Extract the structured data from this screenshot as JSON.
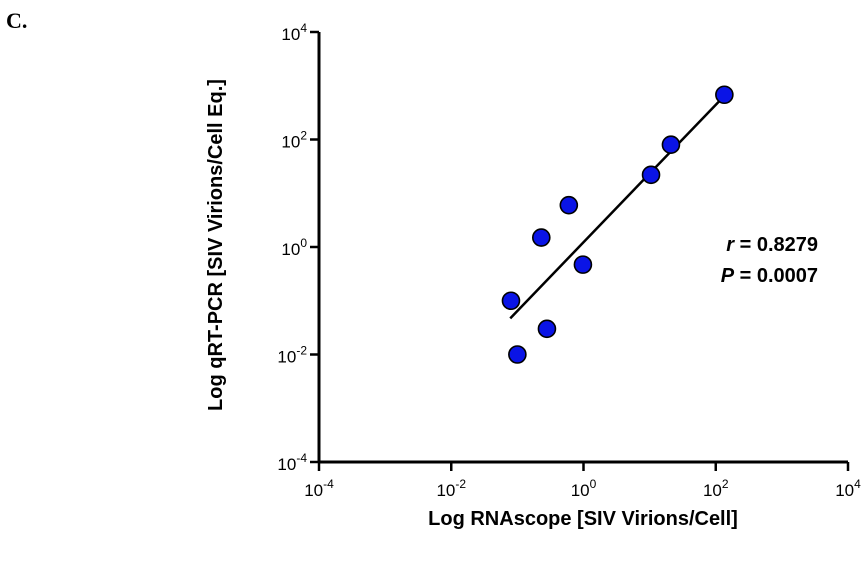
{
  "panel_label": "C.",
  "chart_data": {
    "type": "scatter",
    "xlabel": "Log RNAscope [SIV Virions/Cell]",
    "ylabel": "Log qRT-PCR [SIV Virions/Cell Eq.]",
    "x_scale": "log",
    "y_scale": "log",
    "xlim": [
      0.0001,
      10000
    ],
    "ylim": [
      0.0001,
      10000
    ],
    "x_ticks": [
      {
        "base": "10",
        "exp": "-4",
        "value": 0.0001
      },
      {
        "base": "10",
        "exp": "-2",
        "value": 0.01
      },
      {
        "base": "10",
        "exp": "0",
        "value": 1
      },
      {
        "base": "10",
        "exp": "2",
        "value": 100
      },
      {
        "base": "10",
        "exp": "4",
        "value": 10000
      }
    ],
    "y_ticks": [
      {
        "base": "10",
        "exp": "-4",
        "value": 0.0001
      },
      {
        "base": "10",
        "exp": "-2",
        "value": 0.01
      },
      {
        "base": "10",
        "exp": "0",
        "value": 1
      },
      {
        "base": "10",
        "exp": "2",
        "value": 100
      },
      {
        "base": "10",
        "exp": "4",
        "value": 10000
      }
    ],
    "points": [
      {
        "x": 0.08,
        "y": 0.1
      },
      {
        "x": 0.1,
        "y": 0.01
      },
      {
        "x": 0.23,
        "y": 1.5
      },
      {
        "x": 0.28,
        "y": 0.03
      },
      {
        "x": 0.6,
        "y": 6.0
      },
      {
        "x": 0.98,
        "y": 0.47
      },
      {
        "x": 10.5,
        "y": 22
      },
      {
        "x": 21,
        "y": 80
      },
      {
        "x": 135,
        "y": 680
      }
    ],
    "fit_line": {
      "x": [
        0.078,
        145
      ],
      "y": [
        0.047,
        710
      ]
    },
    "point_color": "#0a14e6",
    "annotation": {
      "r_symbol": "r",
      "r_value": " = 0.8279",
      "p_symbol": "P",
      "p_value": " = 0.0007"
    },
    "grid": false
  }
}
